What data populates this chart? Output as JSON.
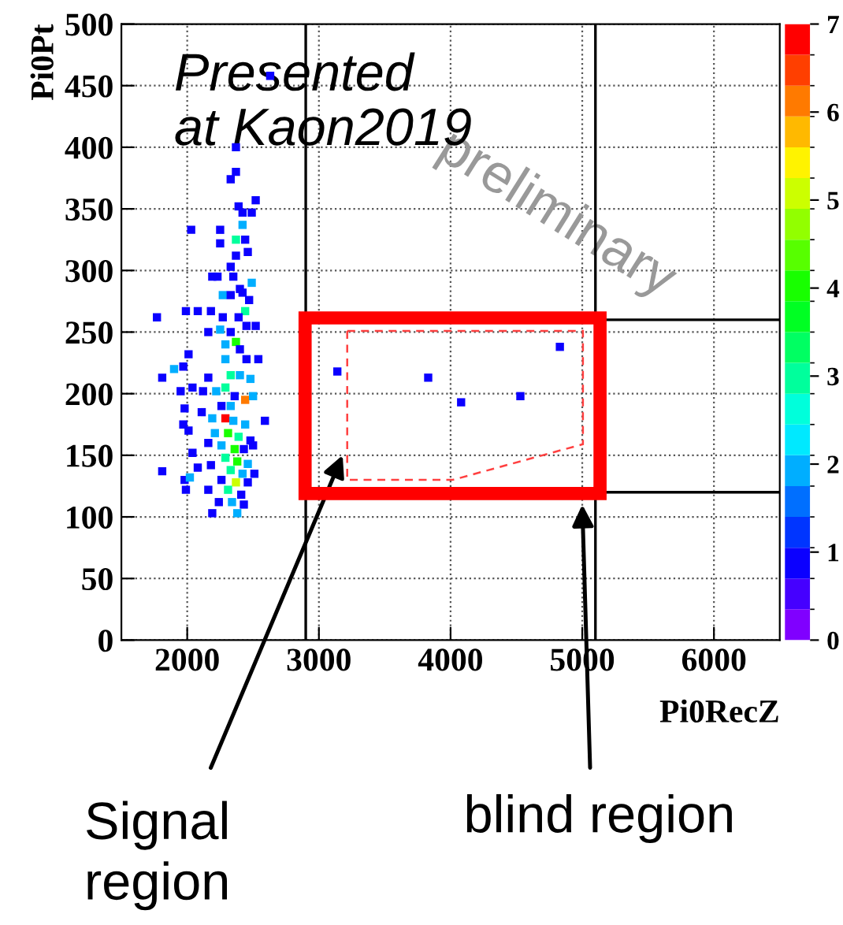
{
  "chart_data": {
    "type": "scatter",
    "xlabel": "Pi0RecZ",
    "ylabel": "Pi0Pt",
    "marker": "square",
    "grid": true,
    "xlim": [
      1500,
      6500
    ],
    "xticks": [
      {
        "value": 2000,
        "label": "2000"
      },
      {
        "value": 3000,
        "label": "3000"
      },
      {
        "value": 4000,
        "label": "4000"
      },
      {
        "value": 5000,
        "label": "5000"
      },
      {
        "value": 6000,
        "label": "6000"
      }
    ],
    "ylim": [
      0,
      500
    ],
    "yticks": [
      0,
      50,
      100,
      150,
      200,
      250,
      300,
      350,
      400,
      450,
      500
    ],
    "clim": [
      0,
      7
    ],
    "cticks": [
      0,
      1,
      2,
      3,
      4,
      5,
      6,
      7
    ],
    "series": [
      {
        "x": [
          2630,
          2370,
          2370,
          2330,
          2390,
          2520,
          2420,
          2490,
          2420,
          2030,
          2250,
          2250,
          2370,
          2440,
          2370,
          2460,
          2330,
          2350,
          2400,
          2490,
          2190,
          2230,
          2270,
          2330,
          2420,
          2470,
          2440,
          2390,
          2270,
          1990,
          2080,
          2180,
          1770,
          2250,
          2330,
          2450,
          2520,
          2160,
          2290,
          2370,
          2400,
          2010,
          1970,
          2290,
          2450,
          2540,
          1900,
          1810,
          2160,
          2330,
          2400,
          2480,
          2040,
          2120,
          2220,
          2290,
          1950,
          2360,
          2440,
          2500,
          2260,
          2330,
          1980,
          2110,
          2190,
          2290,
          2350,
          2440,
          2590,
          1970,
          2010,
          2210,
          2310,
          2390,
          2480,
          2160,
          2260,
          2360,
          2430,
          2500,
          2040,
          2290,
          2380,
          2460,
          2180,
          2080,
          1810,
          2330,
          2420,
          2510,
          1980,
          2020,
          2260,
          2370,
          2460,
          1990,
          2160,
          2310,
          2410,
          2240,
          2340,
          2430,
          2190,
          2380,
          3140,
          3830,
          4080,
          4530,
          4830
        ],
        "values": [
          458,
          400,
          380,
          374,
          352,
          357,
          347,
          347,
          337,
          333,
          333,
          322,
          325,
          325,
          312,
          315,
          303,
          295,
          285,
          290,
          295,
          295,
          280,
          280,
          282,
          276,
          267,
          262,
          262,
          267,
          267,
          267,
          262,
          252,
          250,
          255,
          255,
          250,
          240,
          242,
          236,
          232,
          222,
          228,
          228,
          228,
          220,
          213,
          213,
          215,
          215,
          212,
          205,
          202,
          202,
          205,
          202,
          198,
          195,
          198,
          190,
          190,
          188,
          185,
          180,
          180,
          178,
          175,
          178,
          175,
          170,
          168,
          168,
          165,
          162,
          160,
          158,
          155,
          155,
          158,
          152,
          148,
          145,
          143,
          142,
          140,
          137,
          138,
          135,
          135,
          130,
          132,
          130,
          128,
          128,
          122,
          122,
          122,
          118,
          112,
          112,
          110,
          103,
          103,
          218,
          213,
          193,
          198,
          238
        ],
        "cvalues": [
          1,
          1,
          1,
          1,
          1,
          1,
          1,
          1,
          2,
          1,
          1,
          1,
          3,
          1,
          1,
          1,
          1,
          1,
          1,
          2,
          1,
          1,
          2,
          1,
          1,
          1,
          3,
          1,
          1,
          1,
          1,
          1,
          1,
          2,
          1,
          1,
          1,
          1,
          2,
          4,
          1,
          1,
          1,
          2,
          1,
          1,
          2,
          1,
          1,
          3,
          2,
          2,
          1,
          1,
          2,
          3,
          1,
          1,
          6,
          2,
          1,
          2,
          1,
          1,
          2,
          7,
          2,
          2,
          1,
          1,
          1,
          2,
          4,
          3,
          1,
          1,
          2,
          4,
          1,
          1,
          1,
          3,
          4,
          2,
          1,
          1,
          1,
          3,
          2,
          1,
          1,
          2,
          1,
          5,
          1,
          1,
          1,
          3,
          1,
          1,
          2,
          1,
          1,
          2,
          1,
          1,
          1,
          1,
          1
        ]
      }
    ],
    "ref_lines": [
      {
        "axis": "x",
        "value": 2900,
        "color": "#000000"
      },
      {
        "axis": "x",
        "value": 5100,
        "color": "#000000"
      },
      {
        "axis": "y",
        "value": 260,
        "color": "#000000"
      },
      {
        "axis": "y",
        "value": 120,
        "color": "#000000"
      }
    ],
    "annotations": [
      "Presented\nat Kaon2019",
      "preliminary",
      "Signal\nregion",
      "blind region"
    ]
  }
}
